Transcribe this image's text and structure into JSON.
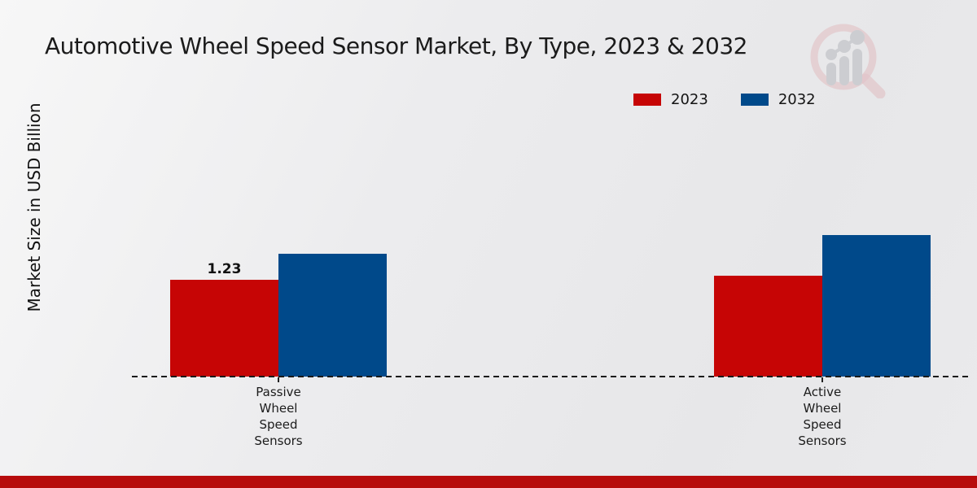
{
  "chart_data": {
    "type": "bar",
    "title": "Automotive Wheel Speed Sensor Market, By Type, 2023 & 2032",
    "ylabel": "Market Size in USD Billion",
    "categories": [
      "Passive Wheel Speed Sensors",
      "Active Wheel Speed Sensors"
    ],
    "series": [
      {
        "name": "2023",
        "color": "#c60505",
        "values": [
          1.23,
          1.28
        ],
        "value_labels": [
          "1.23",
          ""
        ]
      },
      {
        "name": "2032",
        "color": "#00498a",
        "values": [
          1.56,
          1.8
        ],
        "value_labels": [
          "",
          ""
        ]
      }
    ],
    "ylim": [
      0,
      3.34
    ],
    "grid": false,
    "legend_position": "upper-right",
    "baseline_style": "dashed"
  },
  "branding": {
    "watermark_icon": "magnifier-bar-chart-icon",
    "accent_bar_color": "#b70c0c",
    "watermark_ring_color": "#dfb9be",
    "watermark_bar_color": "#c3c5c9"
  }
}
